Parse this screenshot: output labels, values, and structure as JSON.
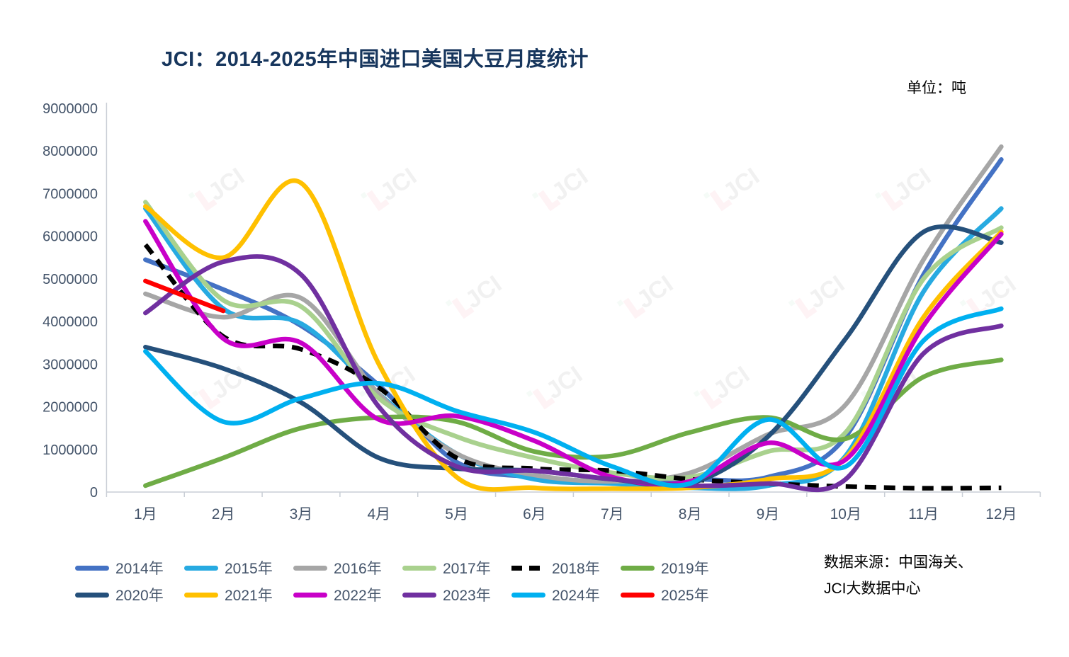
{
  "title": "JCI：2014-2025年中国进口美国大豆月度统计",
  "unit_label": "单位：吨",
  "source_note": {
    "line1": "数据来源：中国海关、",
    "line2": "JCI大数据中心"
  },
  "watermark_text": "JCI",
  "axis_color": "#44546A",
  "tick_line_color": "#C9CED6",
  "chart_data": {
    "type": "line",
    "title": "JCI：2014-2025年中国进口美国大豆月度统计",
    "xlabel": "",
    "ylabel": "吨",
    "ylim": [
      0,
      9000000
    ],
    "ytick_step": 1000000,
    "grid": false,
    "legend_position": "bottom",
    "categories": [
      "1月",
      "2月",
      "3月",
      "4月",
      "5月",
      "6月",
      "7月",
      "8月",
      "9月",
      "10月",
      "11月",
      "12月"
    ],
    "series": [
      {
        "name": "2014年",
        "color": "#4472C4",
        "dash": false,
        "values": [
          5450000,
          4750000,
          3900000,
          2500000,
          700000,
          350000,
          250000,
          300000,
          350000,
          1300000,
          5100000,
          7800000
        ]
      },
      {
        "name": "2015年",
        "color": "#27AAE1",
        "dash": false,
        "values": [
          6650000,
          4300000,
          3950000,
          2300000,
          900000,
          300000,
          200000,
          100000,
          150000,
          850000,
          4700000,
          6650000
        ]
      },
      {
        "name": "2016年",
        "color": "#A6A6A6",
        "dash": false,
        "values": [
          4650000,
          4100000,
          4550000,
          2300000,
          900000,
          400000,
          250000,
          450000,
          1350000,
          2050000,
          5450000,
          8100000
        ]
      },
      {
        "name": "2017年",
        "color": "#A9D18E",
        "dash": false,
        "values": [
          6800000,
          4500000,
          4350000,
          2200000,
          1300000,
          800000,
          450000,
          350000,
          950000,
          1400000,
          5000000,
          6200000
        ]
      },
      {
        "name": "2018年",
        "color": "#000000",
        "dash": true,
        "values": [
          5800000,
          3650000,
          3350000,
          2450000,
          800000,
          550000,
          500000,
          300000,
          200000,
          130000,
          90000,
          100000
        ]
      },
      {
        "name": "2019年",
        "color": "#6FAC46",
        "dash": false,
        "values": [
          150000,
          800000,
          1500000,
          1750000,
          1650000,
          950000,
          850000,
          1400000,
          1750000,
          1250000,
          2700000,
          3100000
        ]
      },
      {
        "name": "2020年",
        "color": "#25507B",
        "dash": false,
        "values": [
          3400000,
          2900000,
          2100000,
          800000,
          550000,
          500000,
          300000,
          200000,
          1300000,
          3600000,
          6100000,
          5850000
        ]
      },
      {
        "name": "2021年",
        "color": "#FFC000",
        "dash": false,
        "values": [
          6700000,
          5500000,
          7250000,
          3000000,
          350000,
          100000,
          80000,
          100000,
          300000,
          800000,
          4100000,
          6100000
        ]
      },
      {
        "name": "2022年",
        "color": "#C800C8",
        "dash": false,
        "values": [
          6350000,
          3600000,
          3500000,
          1700000,
          1780000,
          1200000,
          350000,
          250000,
          1150000,
          760000,
          3900000,
          6050000
        ]
      },
      {
        "name": "2023年",
        "color": "#7030A0",
        "dash": false,
        "values": [
          4200000,
          5400000,
          5100000,
          2000000,
          600000,
          500000,
          300000,
          150000,
          200000,
          300000,
          3250000,
          3900000
        ]
      },
      {
        "name": "2024年",
        "color": "#00B0F0",
        "dash": false,
        "values": [
          3300000,
          1650000,
          2200000,
          2550000,
          1900000,
          1400000,
          600000,
          200000,
          1700000,
          600000,
          3550000,
          4300000
        ]
      },
      {
        "name": "2025年",
        "color": "#FF0000",
        "dash": false,
        "values": [
          4950000,
          4250000,
          null,
          null,
          null,
          null,
          null,
          null,
          null,
          null,
          null,
          null
        ]
      }
    ]
  }
}
